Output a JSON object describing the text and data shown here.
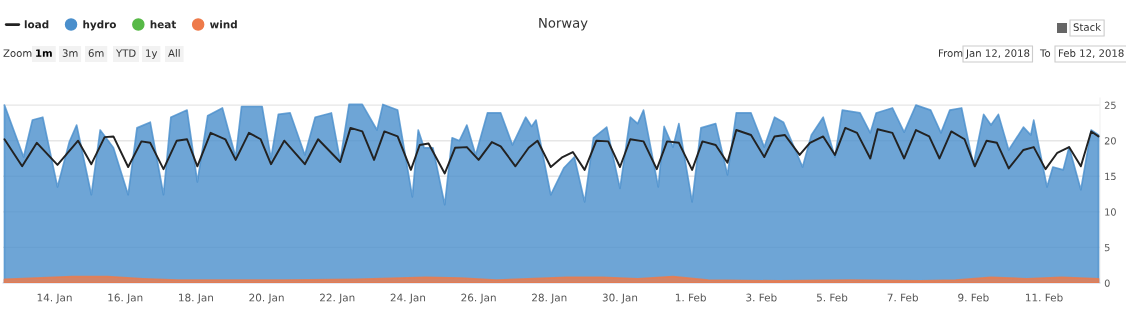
{
  "chart_data": {
    "type": "area",
    "title": "Norway",
    "series": [
      {
        "name": "load",
        "type": "line",
        "color": "#222222",
        "x": [
          "2018-01-12T14:00",
          "2018-01-13T02:00",
          "2018-01-13T12:00",
          "2018-01-14T02:00",
          "2018-01-14T16:00",
          "2018-01-15T01:00",
          "2018-01-15T10:00",
          "2018-01-15T16:00",
          "2018-01-16T02:00",
          "2018-01-16T11:00",
          "2018-01-16T17:00",
          "2018-01-17T02:00",
          "2018-01-17T11:00",
          "2018-01-17T18:00",
          "2018-01-18T01:00",
          "2018-01-18T10:00",
          "2018-01-18T20:00",
          "2018-01-19T03:00",
          "2018-01-19T12:00",
          "2018-01-19T20:00",
          "2018-01-20T03:00",
          "2018-01-20T12:00",
          "2018-01-21T02:00",
          "2018-01-21T11:00",
          "2018-01-22T02:00",
          "2018-01-22T09:00",
          "2018-01-22T17:00",
          "2018-01-23T01:00",
          "2018-01-23T08:00",
          "2018-01-23T17:00",
          "2018-01-24T02:00",
          "2018-01-24T08:00",
          "2018-01-24T14:00",
          "2018-01-25T01:00",
          "2018-01-25T08:00",
          "2018-01-25T16:00",
          "2018-01-26T00:00",
          "2018-01-26T09:00",
          "2018-01-26T15:00",
          "2018-01-27T01:00",
          "2018-01-27T10:00",
          "2018-01-27T16:00",
          "2018-01-28T01:00",
          "2018-01-28T09:00",
          "2018-01-28T16:00",
          "2018-01-29T00:00",
          "2018-01-29T08:00",
          "2018-01-29T16:00",
          "2018-01-30T00:00",
          "2018-01-30T07:00",
          "2018-01-30T16:00",
          "2018-01-31T01:00",
          "2018-01-31T08:00",
          "2018-01-31T16:00",
          "2018-02-01T01:00",
          "2018-02-01T08:00",
          "2018-02-01T17:00",
          "2018-02-02T01:00",
          "2018-02-02T07:00",
          "2018-02-02T17:00",
          "2018-02-03T02:00",
          "2018-02-03T09:00",
          "2018-02-03T16:00",
          "2018-02-04T02:00",
          "2018-02-04T09:00",
          "2018-02-04T18:00",
          "2018-02-05T02:00",
          "2018-02-05T09:00",
          "2018-02-05T17:00",
          "2018-02-06T02:00",
          "2018-02-06T07:00",
          "2018-02-06T17:00",
          "2018-02-07T01:00",
          "2018-02-07T09:00",
          "2018-02-07T18:00",
          "2018-02-08T01:00",
          "2018-02-08T09:00",
          "2018-02-08T18:00",
          "2018-02-09T01:00",
          "2018-02-09T09:00",
          "2018-02-09T16:00",
          "2018-02-10T00:00",
          "2018-02-10T10:00",
          "2018-02-10T17:00",
          "2018-02-11T01:00",
          "2018-02-11T09:00",
          "2018-02-11T17:00",
          "2018-02-12T01:00",
          "2018-02-12T08:00",
          "2018-02-12T13:00"
        ],
        "values": [
          20.2,
          16.4,
          19.7,
          16.6,
          20.0,
          16.7,
          20.5,
          20.6,
          16.3,
          19.9,
          19.7,
          16.0,
          20.0,
          20.2,
          16.4,
          21.1,
          20.2,
          17.3,
          21.1,
          20.2,
          16.7,
          20.0,
          16.7,
          20.2,
          17.0,
          21.8,
          21.3,
          17.3,
          21.3,
          20.6,
          15.9,
          19.4,
          19.6,
          15.4,
          19.0,
          19.1,
          17.3,
          19.8,
          19.2,
          16.4,
          19.0,
          20.0,
          16.3,
          17.7,
          18.4,
          15.9,
          20.0,
          19.9,
          16.3,
          20.2,
          19.9,
          16.0,
          19.9,
          19.7,
          15.9,
          19.9,
          19.4,
          16.9,
          21.5,
          20.8,
          17.7,
          20.6,
          20.8,
          18.0,
          19.7,
          20.6,
          18.0,
          21.8,
          21.1,
          17.5,
          21.6,
          21.1,
          17.5,
          21.5,
          20.6,
          17.5,
          21.3,
          20.2,
          16.4,
          20.0,
          19.7,
          16.1,
          18.7,
          19.1,
          16.0,
          18.3,
          19.1,
          16.4,
          21.3,
          20.6
        ]
      },
      {
        "name": "hydro",
        "color": "#4a8fcc",
        "x": [
          "2018-01-12T14:00",
          "2018-01-13T03:00",
          "2018-01-13T09:00",
          "2018-01-13T16:00",
          "2018-01-14T02:00",
          "2018-01-14T10:00",
          "2018-01-14T15:00",
          "2018-01-15T01:00",
          "2018-01-15T07:00",
          "2018-01-15T16:00",
          "2018-01-16T02:00",
          "2018-01-16T08:00",
          "2018-01-16T17:00",
          "2018-01-17T02:00",
          "2018-01-17T07:00",
          "2018-01-17T18:00",
          "2018-01-18T01:00",
          "2018-01-18T08:00",
          "2018-01-18T18:00",
          "2018-01-19T03:00",
          "2018-01-19T07:00",
          "2018-01-19T21:00",
          "2018-01-20T03:00",
          "2018-01-20T08:00",
          "2018-01-20T16:00",
          "2018-01-21T02:00",
          "2018-01-21T09:00",
          "2018-01-21T20:00",
          "2018-01-22T02:00",
          "2018-01-22T08:00",
          "2018-01-22T17:00",
          "2018-01-23T03:00",
          "2018-01-23T07:00",
          "2018-01-23T17:00",
          "2018-01-24T03:00",
          "2018-01-24T07:00",
          "2018-01-24T11:00",
          "2018-01-24T17:00",
          "2018-01-25T01:00",
          "2018-01-25T06:00",
          "2018-01-25T11:00",
          "2018-01-25T16:00",
          "2018-01-25T22:00",
          "2018-01-26T06:00",
          "2018-01-26T15:00",
          "2018-01-26T23:00",
          "2018-01-27T08:00",
          "2018-01-27T12:00",
          "2018-01-27T15:00",
          "2018-01-28T01:00",
          "2018-01-28T10:00",
          "2018-01-28T17:00",
          "2018-01-29T00:00",
          "2018-01-29T06:00",
          "2018-01-29T15:00",
          "2018-01-30T00:00",
          "2018-01-30T07:00",
          "2018-01-30T12:00",
          "2018-01-30T16:00",
          "2018-01-31T02:00",
          "2018-01-31T06:00",
          "2018-01-31T12:00",
          "2018-01-31T16:00",
          "2018-02-01T01:00",
          "2018-02-01T07:00",
          "2018-02-01T17:00",
          "2018-02-02T01:00",
          "2018-02-02T07:00",
          "2018-02-02T17:00",
          "2018-02-03T02:00",
          "2018-02-03T09:00",
          "2018-02-03T15:00",
          "2018-02-04T04:00",
          "2018-02-04T10:00",
          "2018-02-04T18:00",
          "2018-02-05T02:00",
          "2018-02-05T07:00",
          "2018-02-05T19:00",
          "2018-02-06T02:00",
          "2018-02-06T06:00",
          "2018-02-06T17:00",
          "2018-02-07T01:00",
          "2018-02-07T09:00",
          "2018-02-07T19:00",
          "2018-02-08T02:00",
          "2018-02-08T08:00",
          "2018-02-08T16:00",
          "2018-02-09T00:00",
          "2018-02-09T07:00",
          "2018-02-09T12:00",
          "2018-02-09T17:00",
          "2018-02-10T00:00",
          "2018-02-10T10:00",
          "2018-02-10T15:00",
          "2018-02-10T17:00",
          "2018-02-11T02:00",
          "2018-02-11T06:00",
          "2018-02-11T13:00",
          "2018-02-11T17:00",
          "2018-02-12T01:00",
          "2018-02-12T08:00",
          "2018-02-12T13:00"
        ],
        "values": [
          25.0,
          17.7,
          22.9,
          23.3,
          13.5,
          19.8,
          22.2,
          12.4,
          21.5,
          19.0,
          12.4,
          21.8,
          22.6,
          12.4,
          23.3,
          24.3,
          14.2,
          23.5,
          24.6,
          17.7,
          24.8,
          24.8,
          17.5,
          23.7,
          23.9,
          18.0,
          23.3,
          23.9,
          17.2,
          25.1,
          25.1,
          21.5,
          25.1,
          24.3,
          12.1,
          21.5,
          19.0,
          19.0,
          11.0,
          20.4,
          20.0,
          22.2,
          18.0,
          23.9,
          23.9,
          19.4,
          23.3,
          22.0,
          22.9,
          12.4,
          16.2,
          17.7,
          11.4,
          20.4,
          21.9,
          13.3,
          23.3,
          22.4,
          24.3,
          13.5,
          22.0,
          19.1,
          22.4,
          11.4,
          21.8,
          22.4,
          15.2,
          23.9,
          23.9,
          19.1,
          23.3,
          22.6,
          16.3,
          20.8,
          23.3,
          17.7,
          24.3,
          23.9,
          21.1,
          23.9,
          24.6,
          21.2,
          25.0,
          24.3,
          21.1,
          24.3,
          24.6,
          16.6,
          23.7,
          22.2,
          23.7,
          18.7,
          21.9,
          20.8,
          22.9,
          13.5,
          16.3,
          15.9,
          19.1,
          13.1,
          21.5,
          20.8
        ]
      },
      {
        "name": "heat",
        "color": "#57b947"
      },
      {
        "name": "wind",
        "color": "#ee7a4a",
        "x": [
          "2018-01-12T14:00",
          "2018-01-14T12:00",
          "2018-01-15T12:00",
          "2018-01-16T12:00",
          "2018-01-17T12:00",
          "2018-01-20T12:00",
          "2018-01-22T12:00",
          "2018-01-24T12:00",
          "2018-01-25T12:00",
          "2018-01-26T12:00",
          "2018-01-28T12:00",
          "2018-01-29T12:00",
          "2018-01-30T12:00",
          "2018-01-31T12:00",
          "2018-02-01T12:00",
          "2018-02-03T12:00",
          "2018-02-05T12:00",
          "2018-02-07T12:00",
          "2018-02-08T12:00",
          "2018-02-09T12:00",
          "2018-02-10T12:00",
          "2018-02-11T12:00",
          "2018-02-12T13:00"
        ],
        "values": [
          0.5,
          0.9,
          0.9,
          0.6,
          0.4,
          0.4,
          0.5,
          0.8,
          0.7,
          0.4,
          0.8,
          0.8,
          0.6,
          0.9,
          0.4,
          0.3,
          0.4,
          0.3,
          0.4,
          0.8,
          0.6,
          0.8,
          0.6
        ]
      }
    ],
    "xlim": [
      "2018-01-12T13:00",
      "2018-02-12T14:00"
    ],
    "xticks": [
      {
        "value": "2018-01-14",
        "label": "14. Jan"
      },
      {
        "value": "2018-01-16",
        "label": "16. Jan"
      },
      {
        "value": "2018-01-18",
        "label": "18. Jan"
      },
      {
        "value": "2018-01-20",
        "label": "20. Jan"
      },
      {
        "value": "2018-01-22",
        "label": "22. Jan"
      },
      {
        "value": "2018-01-24",
        "label": "24. Jan"
      },
      {
        "value": "2018-01-26",
        "label": "26. Jan"
      },
      {
        "value": "2018-01-28",
        "label": "28. Jan"
      },
      {
        "value": "2018-01-30",
        "label": "30. Jan"
      },
      {
        "value": "2018-02-01",
        "label": "1. Feb"
      },
      {
        "value": "2018-02-03",
        "label": "3. Feb"
      },
      {
        "value": "2018-02-05",
        "label": "5. Feb"
      },
      {
        "value": "2018-02-07",
        "label": "7. Feb"
      },
      {
        "value": "2018-02-09",
        "label": "9. Feb"
      },
      {
        "value": "2018-02-11",
        "label": "11. Feb"
      }
    ],
    "ylim": [
      0,
      26
    ],
    "yticks": [
      0,
      5,
      10,
      15,
      20,
      25
    ],
    "grid": "y",
    "legend": "top left",
    "annotations": [
      "Zoom",
      "1m",
      "3m",
      "6m",
      "YTD",
      "1y",
      "All",
      "From",
      "Jan 12, 2018",
      "To",
      "Feb 12, 2018",
      "Stack"
    ]
  }
}
